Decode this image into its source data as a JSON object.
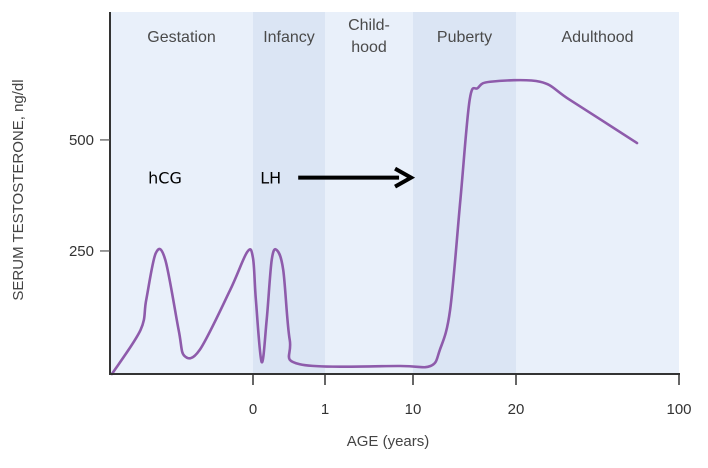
{
  "chart_data": {
    "type": "line",
    "title": "",
    "xlabel": "AGE (years)",
    "ylabel": "SERUM TESTOSTERONE, ng/dl",
    "x_scale": "piecewise (gestation, then 0, 1, 10, 20, 100 years)",
    "xlim": [
      -0.75,
      100
    ],
    "ylim": [
      -27,
      788
    ],
    "x_ticks": [
      0,
      1,
      10,
      20,
      100
    ],
    "x_tick_labels": [
      "0",
      "1",
      "10",
      "20",
      "100"
    ],
    "y_ticks": [
      250,
      500
    ],
    "y_tick_labels": [
      "250",
      "500"
    ],
    "grid": false,
    "line_color": "#8e5bab",
    "bands": [
      {
        "label": "Gestation",
        "from": -0.75,
        "to": 0,
        "color": "#e9f0fa"
      },
      {
        "label": "Infancy",
        "from": 0,
        "to": 1,
        "color": "#dbe5f4"
      },
      {
        "label": "Child-\nhood",
        "from": 1,
        "to": 10,
        "color": "#e9f0fa"
      },
      {
        "label": "Puberty",
        "from": 10,
        "to": 20,
        "color": "#dbe5f4"
      },
      {
        "label": "Adulthood",
        "from": 20,
        "to": 100,
        "color": "#e9f0fa"
      }
    ],
    "series": [
      {
        "x": [
          -0.74,
          -0.59,
          -0.56,
          -0.51,
          -0.46,
          -0.39,
          -0.36,
          -0.28,
          -0.12,
          -0.03,
          0,
          0.04,
          0.12,
          0.19,
          0.26,
          0.33,
          0.42,
          0.51,
          0.65,
          8.7,
          11.7,
          12.6,
          13.6,
          14.6,
          15.5,
          16.3,
          17.5,
          31.8,
          46.5,
          79.4
        ],
        "y": [
          -27,
          72,
          140,
          245,
          230,
          72,
          14,
          27,
          162,
          248,
          234,
          140,
          0,
          95,
          230,
          252,
          207,
          50,
          -5,
          -9,
          -9,
          27,
          117,
          365,
          590,
          617,
          631,
          631,
          590,
          493
        ]
      }
    ],
    "annotations": [
      {
        "text": "hCG",
        "x": -0.55,
        "y": 415
      },
      {
        "text": "LH",
        "x": 0.1,
        "y": 415,
        "arrow_to_x": 9.8
      }
    ]
  }
}
